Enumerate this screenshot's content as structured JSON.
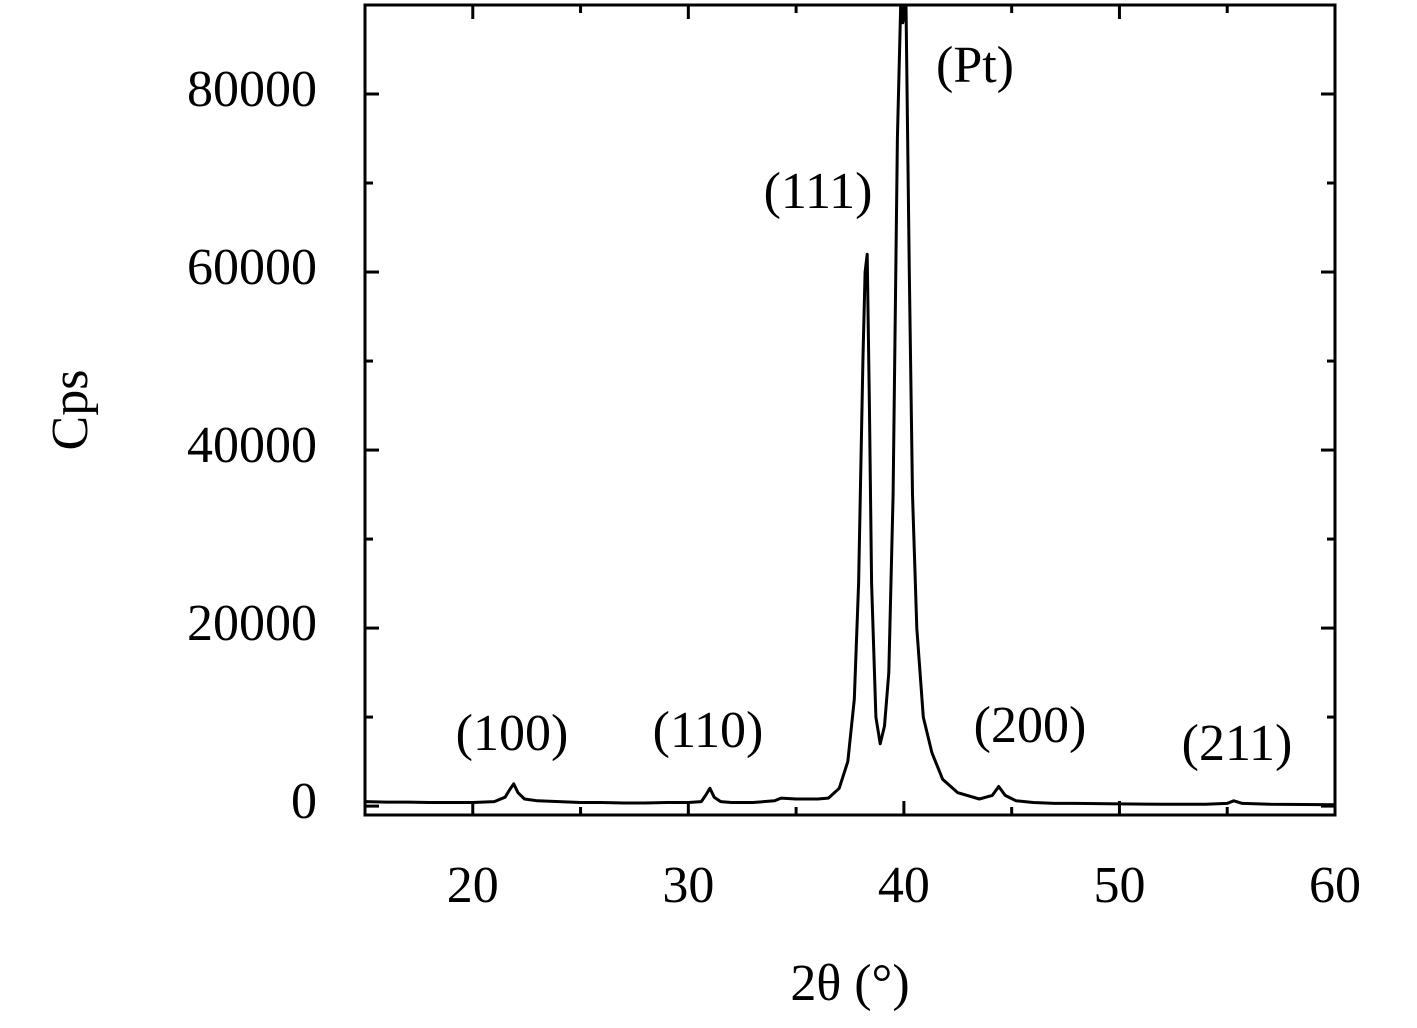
{
  "chart_data": {
    "type": "line",
    "xlabel": "2θ (°)",
    "ylabel": "Cps",
    "xlim": [
      15,
      60
    ],
    "ylim": [
      -1000,
      90000
    ],
    "xticks": [
      20,
      30,
      40,
      50,
      60
    ],
    "yticks": [
      0,
      20000,
      40000,
      60000,
      80000
    ],
    "grid": false,
    "series": [
      {
        "color": "#000000",
        "x": [
          15,
          16,
          17,
          18,
          19,
          20,
          21,
          21.5,
          21.7,
          21.9,
          22.1,
          22.4,
          23,
          24,
          25,
          26,
          27,
          28,
          29,
          30,
          30.6,
          30.8,
          31.0,
          31.2,
          31.5,
          32,
          33,
          34,
          34.3,
          35,
          36,
          36.5,
          37,
          37.4,
          37.7,
          37.9,
          38.1,
          38.2,
          38.3,
          38.4,
          38.5,
          38.7,
          38.9,
          39.1,
          39.3,
          39.5,
          39.7,
          39.85,
          39.95,
          40.1,
          40.25,
          40.4,
          40.6,
          40.9,
          41.3,
          41.8,
          42.5,
          43.5,
          44.1,
          44.4,
          44.7,
          45.2,
          46,
          47,
          48,
          50,
          52,
          54,
          55,
          55.3,
          55.7,
          57,
          60
        ],
        "values": [
          500,
          450,
          450,
          400,
          400,
          400,
          500,
          1000,
          1800,
          2500,
          1500,
          800,
          600,
          500,
          400,
          400,
          350,
          350,
          400,
          400,
          500,
          1200,
          2000,
          1000,
          500,
          400,
          400,
          600,
          900,
          800,
          800,
          900,
          2000,
          5000,
          12000,
          25000,
          50000,
          60000,
          62000,
          45000,
          25000,
          10000,
          7000,
          9000,
          15000,
          35000,
          75000,
          90000,
          88000,
          90000,
          60000,
          35000,
          20000,
          10000,
          6000,
          3000,
          1500,
          800,
          1200,
          2200,
          1200,
          600,
          400,
          300,
          300,
          250,
          200,
          200,
          300,
          600,
          300,
          200,
          150
        ]
      }
    ],
    "annotations": [
      "(100)",
      "(110)",
      "(111)",
      "(Pt)",
      "(200)",
      "(211)"
    ]
  }
}
